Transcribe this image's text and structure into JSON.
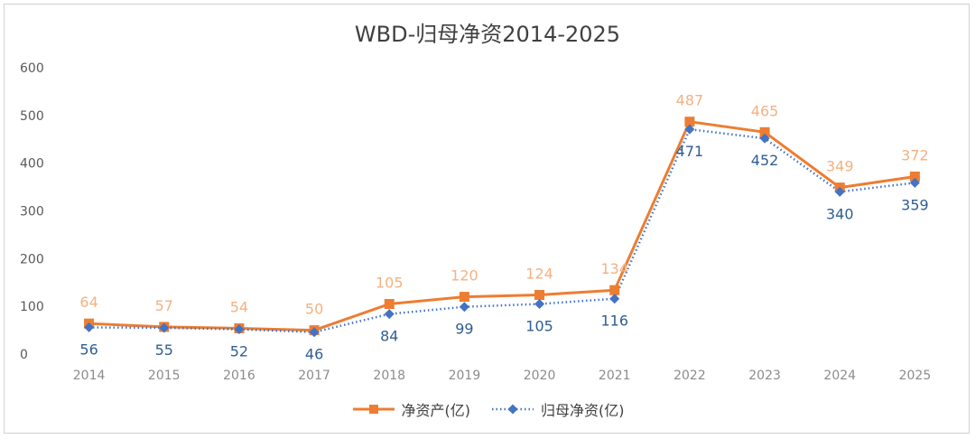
{
  "chart_data": {
    "type": "line",
    "title": "WBD-归母净资2014-2025",
    "categories": [
      "2014",
      "2015",
      "2016",
      "2017",
      "2018",
      "2019",
      "2020",
      "2021",
      "2022",
      "2023",
      "2024",
      "2025"
    ],
    "series": [
      {
        "name": "净资产(亿)",
        "values": [
          64,
          57,
          54,
          50,
          105,
          120,
          124,
          134,
          487,
          465,
          349,
          372
        ],
        "color": "#ed7d31",
        "marker": "square",
        "line_style": "solid"
      },
      {
        "name": "归母净资(亿)",
        "values": [
          56,
          55,
          52,
          46,
          84,
          99,
          105,
          116,
          471,
          452,
          340,
          359
        ],
        "color": "#4472c4",
        "marker": "diamond",
        "line_style": "dotted"
      }
    ],
    "ylim": [
      0,
      600
    ],
    "yticks": [
      0,
      100,
      200,
      300,
      400,
      500,
      600
    ],
    "grid": false,
    "legend_position": "bottom",
    "data_label_colors": {
      "net_assets": "#f4b183",
      "parent_net_assets": "#2e5e91"
    }
  }
}
